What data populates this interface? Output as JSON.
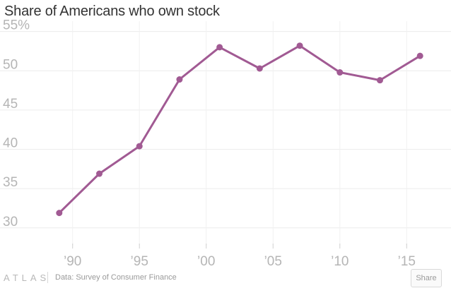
{
  "chart_data": {
    "type": "line",
    "title": "Share of Americans who own stock",
    "xlabel": "",
    "ylabel": "",
    "x": [
      1989,
      1992,
      1995,
      1998,
      2001,
      2004,
      2007,
      2010,
      2013,
      2016
    ],
    "series": [
      {
        "values": [
          31.9,
          36.9,
          40.4,
          48.9,
          53.0,
          50.3,
          53.2,
          49.8,
          48.8,
          51.9
        ]
      }
    ],
    "x_ticks": [
      1990,
      1995,
      2000,
      2005,
      2010,
      2015
    ],
    "x_tick_labels": [
      "’90",
      "’95",
      "’00",
      "’05",
      "’10",
      "’15"
    ],
    "y_ticks": [
      30,
      35,
      40,
      45,
      50,
      55
    ],
    "y_tick_labels": [
      "30",
      "35",
      "40",
      "45",
      "50",
      "55%"
    ],
    "xlim": [
      1987,
      2018
    ],
    "ylim": [
      28,
      56.5
    ],
    "grid": true,
    "color": "#a15a93"
  },
  "footer": {
    "brand": "ATLAS",
    "source": "Data:  Survey of Consumer Finance",
    "share_label": "Share"
  }
}
